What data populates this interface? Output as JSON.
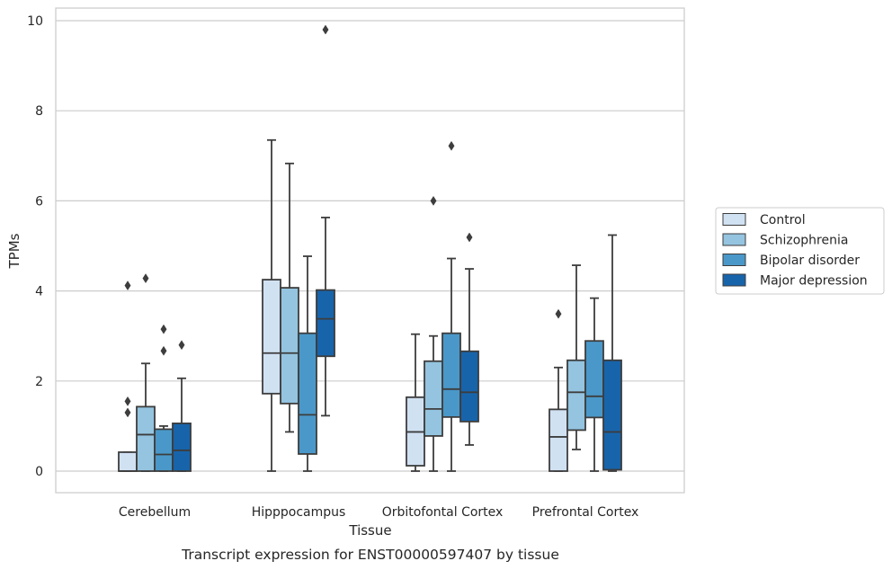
{
  "chart_data": {
    "type": "box",
    "caption": "Transcript expression for ENST00000597407 by tissue",
    "xlabel": "Tissue",
    "ylabel": "TPMs",
    "ylim": [
      -0.45,
      10.3
    ],
    "yticks": [
      0,
      2,
      4,
      6,
      8,
      10
    ],
    "grid": true,
    "legend_position": "right",
    "categories": [
      "Cerebellum",
      "Hipppocampus",
      "Orbitofontal Cortex",
      "Prefrontal Cortex"
    ],
    "series": [
      {
        "name": "Control",
        "color": "#d0e1f2",
        "boxes": [
          {
            "min": 0,
            "q1": 0,
            "median": 0,
            "q3": 0.42,
            "max": 0.42,
            "outliers": [
              1.3,
              1.55,
              4.12
            ]
          },
          {
            "min": 0,
            "q1": 1.72,
            "median": 2.62,
            "q3": 4.25,
            "max": 7.35,
            "outliers": []
          },
          {
            "min": 0,
            "q1": 0.12,
            "median": 0.87,
            "q3": 1.64,
            "max": 3.04,
            "outliers": []
          },
          {
            "min": 0,
            "q1": 0,
            "median": 0.76,
            "q3": 1.37,
            "max": 2.3,
            "outliers": [
              3.49
            ]
          }
        ]
      },
      {
        "name": "Schizophrenia",
        "color": "#94c4df",
        "boxes": [
          {
            "min": 0,
            "q1": 0,
            "median": 0.81,
            "q3": 1.43,
            "max": 2.39,
            "outliers": [
              4.28
            ]
          },
          {
            "min": 0.87,
            "q1": 1.5,
            "median": 2.62,
            "q3": 4.07,
            "max": 6.83,
            "outliers": []
          },
          {
            "min": 0,
            "q1": 0.78,
            "median": 1.38,
            "q3": 2.44,
            "max": 3.0,
            "outliers": [
              6.0
            ]
          },
          {
            "min": 0.48,
            "q1": 0.91,
            "median": 1.75,
            "q3": 2.46,
            "max": 4.57,
            "outliers": []
          }
        ]
      },
      {
        "name": "Bipolar disorder",
        "color": "#4a98c9",
        "boxes": [
          {
            "min": 0,
            "q1": 0,
            "median": 0.37,
            "q3": 0.93,
            "max": 1.0,
            "outliers": [
              2.67,
              3.15
            ]
          },
          {
            "min": 0,
            "q1": 0.38,
            "median": 1.25,
            "q3": 3.06,
            "max": 4.77,
            "outliers": []
          },
          {
            "min": 0,
            "q1": 1.2,
            "median": 1.82,
            "q3": 3.06,
            "max": 4.72,
            "outliers": [
              7.22
            ]
          },
          {
            "min": 0,
            "q1": 1.19,
            "median": 1.66,
            "q3": 2.89,
            "max": 3.84,
            "outliers": []
          }
        ]
      },
      {
        "name": "Major depression",
        "color": "#1764ab",
        "boxes": [
          {
            "min": 0,
            "q1": 0,
            "median": 0.46,
            "q3": 1.06,
            "max": 2.06,
            "outliers": [
              2.8
            ]
          },
          {
            "min": 1.23,
            "q1": 2.55,
            "median": 3.38,
            "q3": 4.02,
            "max": 5.63,
            "outliers": [
              9.8
            ]
          },
          {
            "min": 0.58,
            "q1": 1.1,
            "median": 1.75,
            "q3": 2.66,
            "max": 4.49,
            "outliers": [
              5.19
            ]
          },
          {
            "min": 0,
            "q1": 0.03,
            "median": 0.87,
            "q3": 2.46,
            "max": 5.24,
            "outliers": []
          }
        ]
      }
    ]
  }
}
